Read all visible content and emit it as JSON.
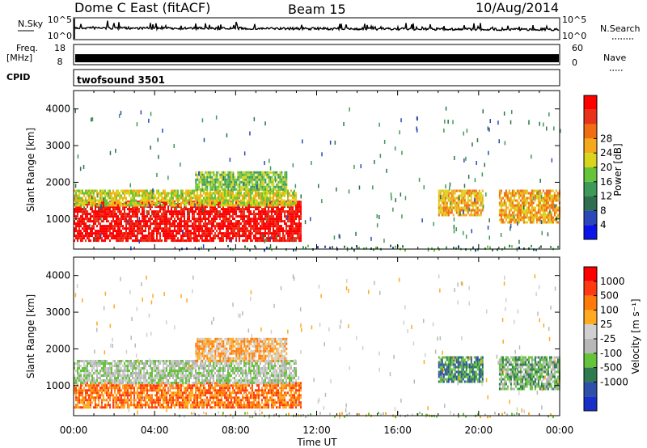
{
  "header": {
    "title": "Dome C East (fitACF)",
    "beam": "Beam 15",
    "date": "10/Aug/2014"
  },
  "colors": {
    "power_scale": [
      "#0a14e8",
      "#2c48b8",
      "#2f6f4f",
      "#3d9a57",
      "#66c43a",
      "#d8d51c",
      "#f5a81c",
      "#f06e12",
      "#e8321a",
      "#ff0000"
    ],
    "velocity_scale": [
      "#ff0000",
      "#ff3a10",
      "#ff7a0a",
      "#ffaa20",
      "#d0d0d0",
      "#b8b8b8",
      "#66c43a",
      "#2f7a4f",
      "#2f4fa8",
      "#1830c8"
    ]
  },
  "top_panels": {
    "nsky_label": "N.Sky",
    "nsky_ticks": [
      "10^5",
      "10^0"
    ],
    "nsearch_label": "N.Search",
    "nsearch_ticks": [
      "10^5",
      "10^0"
    ],
    "freq_label_1": "Freq.",
    "freq_label_2": "[MHz]",
    "freq_ticks": [
      "18",
      "8"
    ],
    "nave_label": "Nave",
    "nave_ticks": [
      "60",
      "0"
    ],
    "cpid_label": "CPID",
    "cpid_value": "twofsound 3501"
  },
  "chart_data": [
    {
      "type": "heatmap",
      "name": "power",
      "ylabel": "Slant Range [km]",
      "xlabel": "",
      "yticks": [
        1000,
        2000,
        3000,
        4000
      ],
      "ylim": [
        180,
        4500
      ],
      "xlim": [
        0,
        24
      ],
      "colorbar": {
        "label": "Power [dB]",
        "ticks": [
          4,
          8,
          12,
          16,
          20,
          24,
          28
        ]
      },
      "regions": [
        {
          "t0": 0.0,
          "t1": 11.2,
          "r0": 400,
          "r1": 1500,
          "level": 9
        },
        {
          "t0": 0.0,
          "t1": 11.0,
          "r0": 1400,
          "r1": 1800,
          "level": 5
        },
        {
          "t0": 6.0,
          "t1": 10.5,
          "r0": 1800,
          "r1": 2300,
          "level": 4
        },
        {
          "t0": 18.0,
          "t1": 20.2,
          "r0": 1100,
          "r1": 1800,
          "level": 6
        },
        {
          "t0": 21.0,
          "t1": 24.0,
          "r0": 900,
          "r1": 1800,
          "level": 6
        }
      ]
    },
    {
      "type": "heatmap",
      "name": "velocity",
      "ylabel": "Slant Range [km]",
      "xlabel": "Time UT",
      "xticks": [
        "00:00",
        "04:00",
        "08:00",
        "12:00",
        "16:00",
        "20:00",
        "00:00"
      ],
      "yticks": [
        1000,
        2000,
        3000,
        4000
      ],
      "ylim": [
        180,
        4500
      ],
      "xlim": [
        0,
        24
      ],
      "colorbar": {
        "label": "Velocity [m s⁻¹]",
        "ticks": [
          1000,
          500,
          100,
          25,
          -25,
          -100,
          -500,
          -1000
        ]
      },
      "regions": [
        {
          "t0": 0.0,
          "t1": 11.2,
          "r0": 400,
          "r1": 1100,
          "level": 2
        },
        {
          "t0": 0.0,
          "t1": 11.0,
          "r0": 1100,
          "r1": 1700,
          "level": 5
        },
        {
          "t0": 6.0,
          "t1": 10.5,
          "r0": 1700,
          "r1": 2300,
          "level": 3
        },
        {
          "t0": 18.0,
          "t1": 20.2,
          "r0": 1100,
          "r1": 1800,
          "level": 7
        },
        {
          "t0": 21.0,
          "t1": 24.0,
          "r0": 900,
          "r1": 1800,
          "level": 6
        }
      ]
    }
  ]
}
